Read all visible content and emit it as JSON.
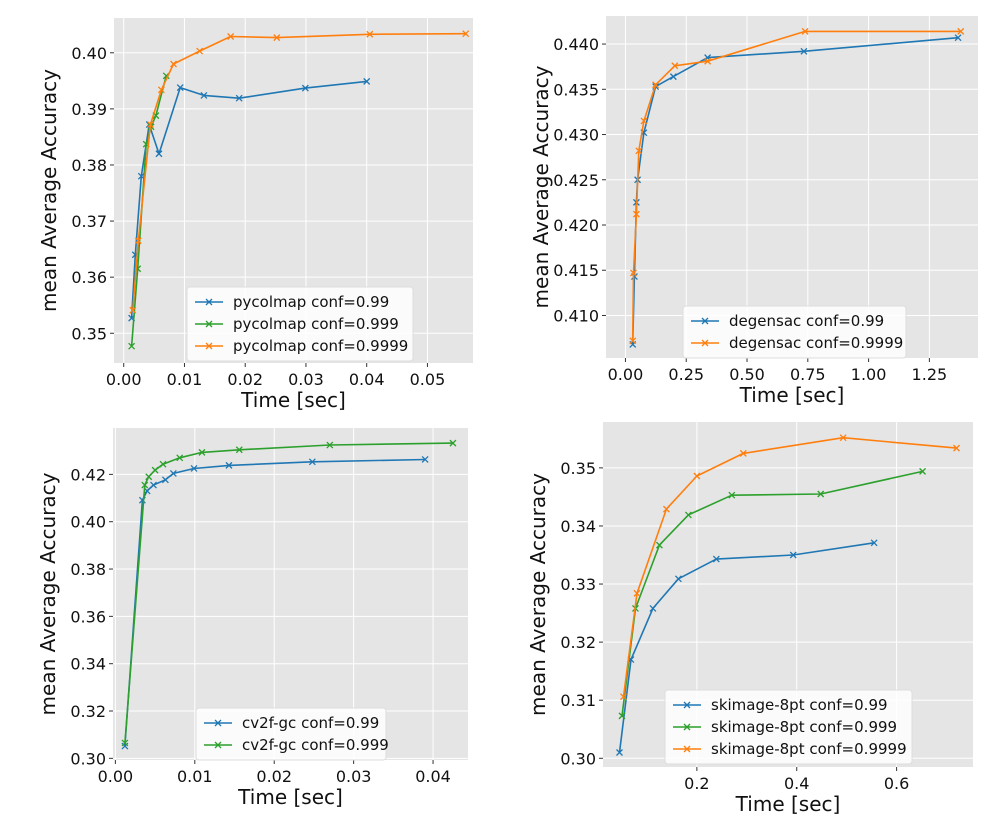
{
  "colors": {
    "blue": "#1f77b4",
    "green": "#2ca02c",
    "orange": "#ff7f0e",
    "plot_bg": "#e5e5e5",
    "grid": "#ffffff"
  },
  "chart_data": [
    {
      "type": "line",
      "xlabel": "Time [sec]",
      "ylabel": "mean Average Accuracy",
      "xlim": [
        -0.0016,
        0.0575
      ],
      "ylim": [
        0.3447,
        0.4062
      ],
      "xticks": [
        0.0,
        0.01,
        0.02,
        0.03,
        0.04,
        0.05
      ],
      "xtick_labels": [
        "0.00",
        "0.01",
        "0.02",
        "0.03",
        "0.04",
        "0.05"
      ],
      "yticks": [
        0.35,
        0.36,
        0.37,
        0.38,
        0.39,
        0.4
      ],
      "ytick_labels": [
        "0.35",
        "0.36",
        "0.37",
        "0.38",
        "0.39",
        "0.40"
      ],
      "grid": true,
      "legend_placement": "lower-right",
      "series": [
        {
          "name": "pycolmap conf=0.99",
          "color": "#1f77b4",
          "x": [
            0.0013,
            0.0019,
            0.0029,
            0.0042,
            0.0058,
            0.0093,
            0.0132,
            0.019,
            0.0299,
            0.04
          ],
          "y": [
            0.3527,
            0.364,
            0.378,
            0.3872,
            0.382,
            0.3938,
            0.3924,
            0.3919,
            0.3937,
            0.3949
          ]
        },
        {
          "name": "pycolmap conf=0.999",
          "color": "#2ca02c",
          "x": [
            0.0013,
            0.0023,
            0.0037,
            0.0045,
            0.0053,
            0.007
          ],
          "y": [
            0.3477,
            0.3615,
            0.3837,
            0.3868,
            0.3888,
            0.3959
          ]
        },
        {
          "name": "pycolmap conf=0.9999",
          "color": "#ff7f0e",
          "x": [
            0.0015,
            0.0024,
            0.0044,
            0.0062,
            0.0082,
            0.0125,
            0.0176,
            0.0252,
            0.0405,
            0.0563
          ],
          "y": [
            0.3541,
            0.3665,
            0.3872,
            0.3934,
            0.398,
            0.4003,
            0.4029,
            0.4027,
            0.4033,
            0.4034
          ]
        }
      ]
    },
    {
      "type": "line",
      "xlabel": "Time [sec]",
      "ylabel": "mean Average Accuracy",
      "xlim": [
        -0.08,
        1.45
      ],
      "ylim": [
        0.4053,
        0.4431
      ],
      "xticks": [
        0.0,
        0.25,
        0.5,
        0.75,
        1.0,
        1.25
      ],
      "xtick_labels": [
        "0.00",
        "0.25",
        "0.50",
        "0.75",
        "1.00",
        "1.25"
      ],
      "yticks": [
        0.41,
        0.415,
        0.42,
        0.425,
        0.43,
        0.435,
        0.44
      ],
      "ytick_labels": [
        "0.410",
        "0.415",
        "0.420",
        "0.425",
        "0.430",
        "0.435",
        "0.440"
      ],
      "grid": true,
      "legend_placement": "lower-right",
      "series": [
        {
          "name": "degensac conf=0.99",
          "color": "#1f77b4",
          "x": [
            0.03,
            0.037,
            0.045,
            0.05,
            0.076,
            0.124,
            0.197,
            0.338,
            0.734,
            1.368
          ],
          "y": [
            0.4068,
            0.4143,
            0.4225,
            0.425,
            0.4302,
            0.4353,
            0.4364,
            0.4385,
            0.4392,
            0.4407
          ]
        },
        {
          "name": "degensac conf=0.9999",
          "color": "#ff7f0e",
          "x": [
            0.03,
            0.033,
            0.045,
            0.055,
            0.076,
            0.124,
            0.203,
            0.338,
            0.739,
            1.379
          ],
          "y": [
            0.4072,
            0.4147,
            0.4212,
            0.4282,
            0.4315,
            0.4355,
            0.4376,
            0.4381,
            0.4414,
            0.4414
          ]
        }
      ]
    },
    {
      "type": "line",
      "xlabel": "Time [sec]",
      "ylabel": "mean Average Accuracy",
      "xlim": [
        -0.0003,
        0.0444
      ],
      "ylim": [
        0.2993,
        0.4396
      ],
      "xticks": [
        0.0,
        0.01,
        0.02,
        0.03,
        0.04
      ],
      "xtick_labels": [
        "0.00",
        "0.01",
        "0.02",
        "0.03",
        "0.04"
      ],
      "yticks": [
        0.3,
        0.32,
        0.34,
        0.36,
        0.38,
        0.4,
        0.42
      ],
      "ytick_labels": [
        "0.30",
        "0.32",
        "0.34",
        "0.36",
        "0.38",
        "0.40",
        "0.42"
      ],
      "grid": true,
      "legend_placement": "lower-center",
      "series": [
        {
          "name": "cv2f-gc conf=0.99",
          "color": "#1f77b4",
          "x": [
            0.0012,
            0.0034,
            0.004,
            0.0048,
            0.0063,
            0.0073,
            0.0099,
            0.0143,
            0.0248,
            0.039
          ],
          "y": [
            0.3052,
            0.4091,
            0.413,
            0.4155,
            0.4177,
            0.4204,
            0.4225,
            0.4238,
            0.4253,
            0.4263
          ]
        },
        {
          "name": "cv2f-gc conf=0.999",
          "color": "#2ca02c",
          "x": [
            0.0012,
            0.0037,
            0.0042,
            0.005,
            0.006,
            0.0081,
            0.0109,
            0.0156,
            0.027,
            0.0425
          ],
          "y": [
            0.3065,
            0.4155,
            0.419,
            0.4218,
            0.4243,
            0.427,
            0.4293,
            0.4304,
            0.4324,
            0.4332
          ]
        }
      ]
    },
    {
      "type": "line",
      "xlabel": "Time [sec]",
      "ylabel": "mean Average Accuracy",
      "xlim": [
        0.012,
        0.753
      ],
      "ylim": [
        0.2985,
        0.3579
      ],
      "xticks": [
        0.2,
        0.4,
        0.6
      ],
      "xtick_labels": [
        "0.2",
        "0.4",
        "0.6"
      ],
      "yticks": [
        0.3,
        0.31,
        0.32,
        0.33,
        0.34,
        0.35
      ],
      "ytick_labels": [
        "0.30",
        "0.31",
        "0.32",
        "0.33",
        "0.34",
        "0.35"
      ],
      "grid": true,
      "legend_placement": "lower-center",
      "series": [
        {
          "name": "skimage-8pt conf=0.99",
          "color": "#1f77b4",
          "x": [
            0.045,
            0.068,
            0.112,
            0.163,
            0.239,
            0.393,
            0.555
          ],
          "y": [
            0.301,
            0.317,
            0.3258,
            0.3309,
            0.3343,
            0.335,
            0.3371
          ]
        },
        {
          "name": "skimage-8pt conf=0.999",
          "color": "#2ca02c",
          "x": [
            0.05,
            0.077,
            0.125,
            0.183,
            0.27,
            0.448,
            0.652
          ],
          "y": [
            0.3073,
            0.3258,
            0.3367,
            0.3419,
            0.3453,
            0.3455,
            0.3494
          ]
        },
        {
          "name": "skimage-8pt conf=0.9999",
          "color": "#ff7f0e",
          "x": [
            0.053,
            0.08,
            0.139,
            0.2,
            0.293,
            0.493,
            0.72
          ],
          "y": [
            0.3106,
            0.3284,
            0.3429,
            0.3486,
            0.3525,
            0.3552,
            0.3534
          ]
        }
      ]
    }
  ]
}
